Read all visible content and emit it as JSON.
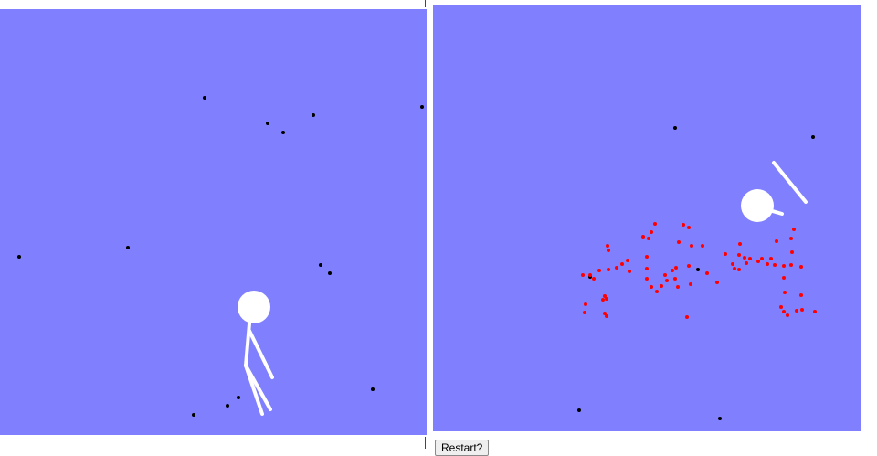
{
  "restart_button": {
    "label": "Restart?"
  },
  "colors": {
    "background": "#8080ff",
    "figure": "#ffffff",
    "dot": "#000000",
    "particle": "#ff0000"
  },
  "left_panel": {
    "figure": "stick-figure-walking",
    "dot_count": 15
  },
  "right_panel": {
    "figure": "stick-figure-head-and-limb",
    "dot_count": 6,
    "particle_count": 74
  }
}
